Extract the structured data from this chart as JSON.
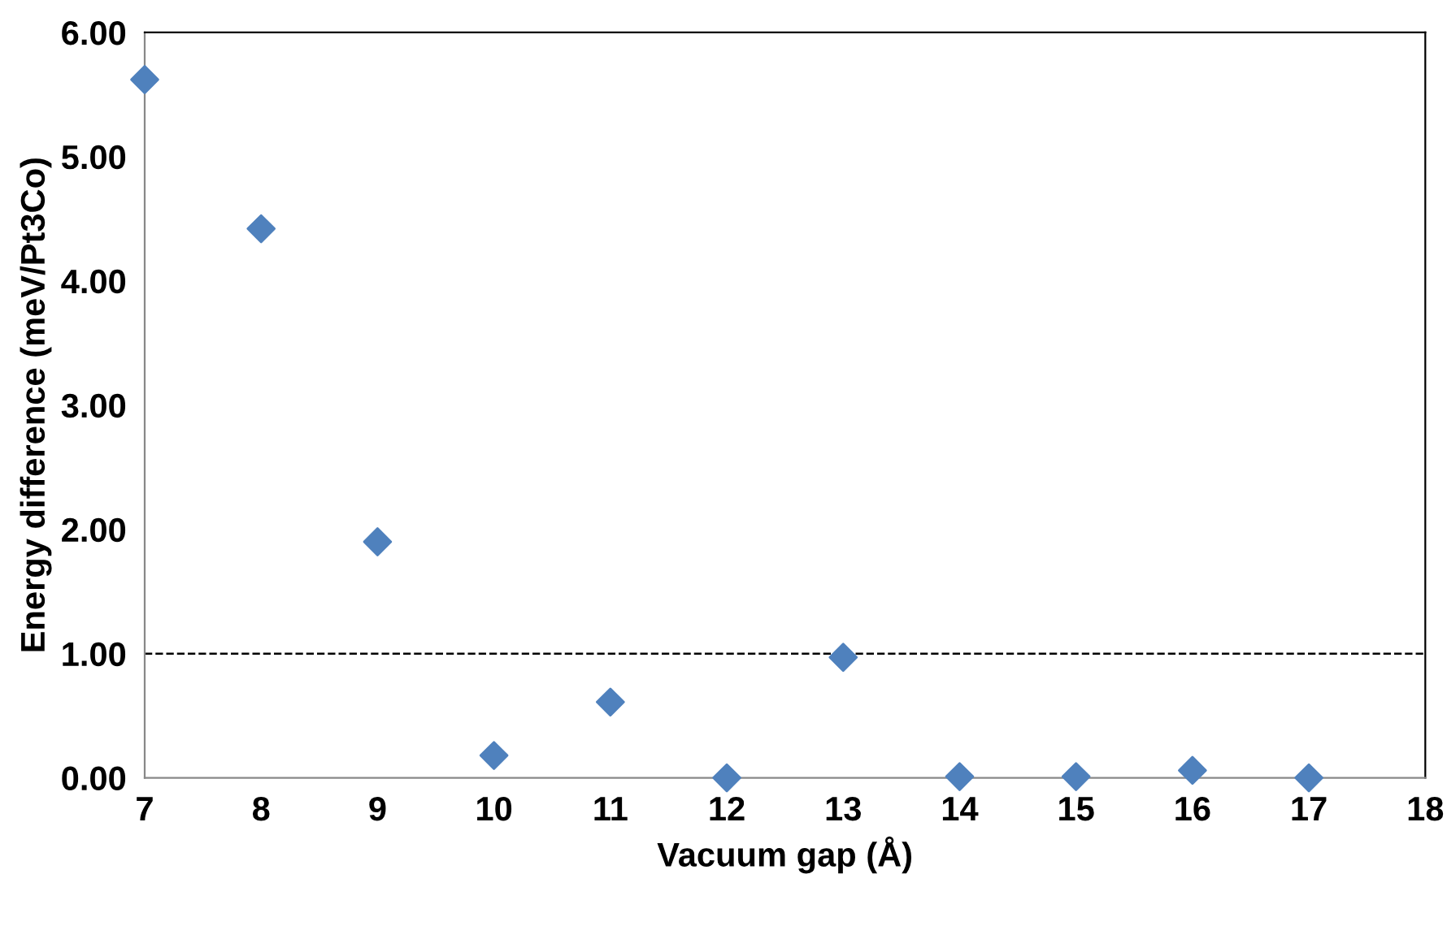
{
  "chart_data": {
    "type": "scatter",
    "xlabel": "Vacuum gap (Å)",
    "ylabel": "Energy difference (meV/Pt3Co)",
    "x": [
      7,
      8,
      9,
      10,
      11,
      12,
      13,
      14,
      15,
      16,
      17
    ],
    "series": [
      {
        "color": "#4f81bd",
        "values": [
          5.62,
          4.42,
          1.9,
          0.18,
          0.61,
          0.0,
          0.97,
          0.01,
          0.01,
          0.06,
          0.0
        ]
      }
    ],
    "marker": "diamond",
    "xlim": [
      7,
      18
    ],
    "xticks": [
      7,
      8,
      9,
      10,
      11,
      12,
      13,
      14,
      15,
      16,
      17,
      18
    ],
    "ylim": [
      0,
      6
    ],
    "yticks": [
      {
        "value": 0,
        "label": "0.00"
      },
      {
        "value": 1,
        "label": "1.00"
      },
      {
        "value": 2,
        "label": "2.00"
      },
      {
        "value": 3,
        "label": "3.00"
      },
      {
        "value": 4,
        "label": "4.00"
      },
      {
        "value": 5,
        "label": "5.00"
      },
      {
        "value": 6,
        "label": "6.00"
      }
    ],
    "ref_lines": [
      {
        "axis": "y",
        "value": 1,
        "color": "#000000",
        "line_style": "dashed"
      }
    ],
    "grid": false,
    "legend": false
  }
}
